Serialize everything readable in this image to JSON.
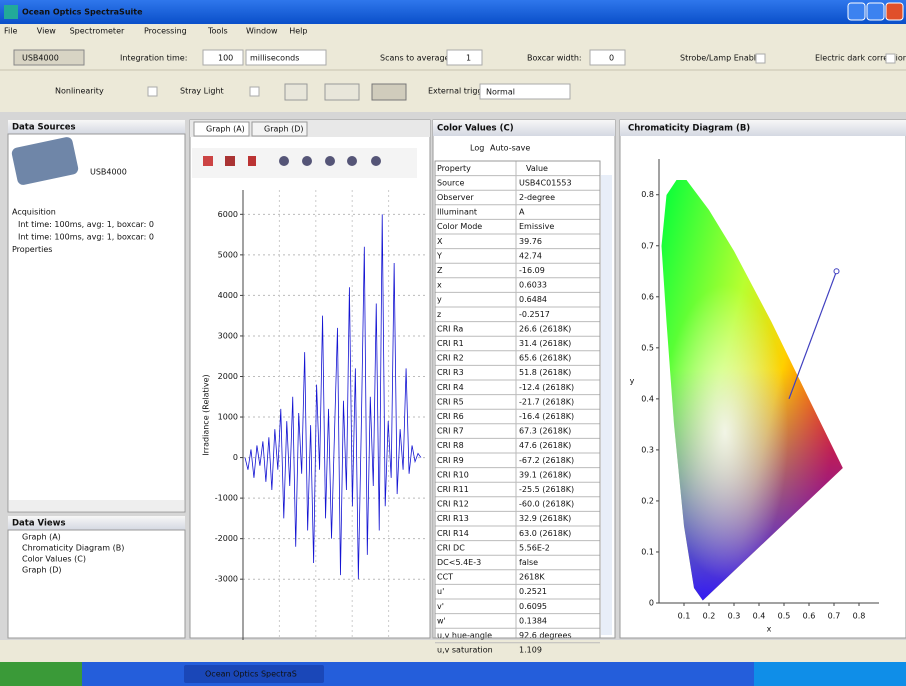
{
  "window": {
    "title": "Ocean Optics SpectraSuite"
  },
  "menu": [
    "File",
    "View",
    "Spectrometer",
    "Processing",
    "Tools",
    "Window",
    "Help"
  ],
  "toolbar": {
    "device": "USB4000",
    "integration_time": "Integration time:",
    "integration_value": "100",
    "integration_unit": "milliseconds",
    "scans": "Scans to average:",
    "scans_value": "1",
    "boxcar": "Boxcar width:",
    "boxcar_value": "0",
    "strobe": "Strobe/Lamp Enable",
    "dark": "Electric dark correction",
    "nonlinearity": "Nonlinearity",
    "stray_light": "Stray Light",
    "trigger": "External trigger",
    "trigger_mode": "Normal"
  },
  "data_sources": {
    "title": "Data Sources",
    "device": "USB4000",
    "tree": [
      "Acquisition",
      "Int time: 100ms, avg: 1, boxcar: 0",
      "Int time: 100ms, avg: 1, boxcar: 0",
      "Properties"
    ]
  },
  "data_views": {
    "title": "Data Views",
    "items": [
      "Graph (A)",
      "Chromaticity Diagram (B)",
      "Color Values (C)",
      "Graph (D)"
    ]
  },
  "graph_tabs": [
    "Graph (A)",
    "Graph (D)"
  ],
  "color_values": {
    "title": "Color Values (C)",
    "log": "Log",
    "autosave": "Auto-save",
    "columns": [
      "Property",
      "Value"
    ],
    "rows": [
      [
        "Source",
        "USB4C01553"
      ],
      [
        "Observer",
        "2-degree"
      ],
      [
        "Illuminant",
        "A"
      ],
      [
        "Color Mode",
        "Emissive"
      ],
      [
        "X",
        "39.76"
      ],
      [
        "Y",
        "42.74"
      ],
      [
        "Z",
        "-16.09"
      ],
      [
        "x",
        "0.6033"
      ],
      [
        "y",
        "0.6484"
      ],
      [
        "z",
        "-0.2517"
      ],
      [
        "CRI Ra",
        "26.6 (2618K)"
      ],
      [
        "CRI R1",
        "31.4 (2618K)"
      ],
      [
        "CRI R2",
        "65.6 (2618K)"
      ],
      [
        "CRI R3",
        "51.8 (2618K)"
      ],
      [
        "CRI R4",
        "-12.4 (2618K)"
      ],
      [
        "CRI R5",
        "-21.7 (2618K)"
      ],
      [
        "CRI R6",
        "-16.4 (2618K)"
      ],
      [
        "CRI R7",
        "67.3 (2618K)"
      ],
      [
        "CRI R8",
        "47.6 (2618K)"
      ],
      [
        "CRI R9",
        "-67.2 (2618K)"
      ],
      [
        "CRI R10",
        "39.1 (2618K)"
      ],
      [
        "CRI R11",
        "-25.5 (2618K)"
      ],
      [
        "CRI R12",
        "-60.0 (2618K)"
      ],
      [
        "CRI R13",
        "32.9 (2618K)"
      ],
      [
        "CRI R14",
        "63.0 (2618K)"
      ],
      [
        "CRI DC",
        "5.56E-2"
      ],
      [
        "DC<5.4E-3",
        "false"
      ],
      [
        "CCT",
        "2618K"
      ],
      [
        "u'",
        "0.2521"
      ],
      [
        "v'",
        "0.6095"
      ],
      [
        "w'",
        "0.1384"
      ],
      [
        "u,v hue-angle",
        "92.6 degrees"
      ],
      [
        "u,v saturation",
        "1.109"
      ]
    ]
  },
  "chromaticity_title": "Chromaticity Diagram (B)",
  "taskbar": {
    "task": "Ocean Optics SpectraS"
  },
  "chart_data": [
    {
      "type": "line",
      "y_label": "Irradiance (Relative)",
      "ylim": [
        -4500,
        6600
      ],
      "yticks": [
        -3000,
        -2000,
        -1000,
        0,
        1000,
        2000,
        3000,
        4000,
        5000,
        6000
      ],
      "grid": true,
      "series": [
        {
          "color": "#1414d2",
          "values": [
            0,
            -300,
            200,
            -500,
            300,
            -200,
            400,
            -600,
            500,
            -800,
            700,
            -300,
            1200,
            -1500,
            900,
            -700,
            1500,
            -2200,
            1100,
            -400,
            2600,
            -1800,
            800,
            -2600,
            1800,
            -300,
            3500,
            -1500,
            1200,
            -2000,
            600,
            3200,
            -2900,
            1400,
            -800,
            4200,
            -1200,
            2200,
            -3000,
            800,
            5200,
            -2400,
            1500,
            -700,
            3800,
            -1800,
            6000,
            -1200,
            900,
            -500,
            4800,
            -900,
            700,
            -300,
            2200,
            -400,
            300,
            -100,
            100,
            0
          ]
        }
      ]
    },
    {
      "type": "line",
      "x_label": "x",
      "y_label": "y",
      "xlim": [
        0,
        0.88
      ],
      "ylim": [
        0,
        0.87
      ],
      "xticks": [
        0.1,
        0.2,
        0.3,
        0.4,
        0.5,
        0.6,
        0.7,
        0.8
      ],
      "yticks": [
        0,
        0.1,
        0.2,
        0.3,
        0.4,
        0.5,
        0.6,
        0.7,
        0.8
      ],
      "series": [
        {
          "color": "#4040c0",
          "x": [
            0.52,
            0.71
          ],
          "values": [
            0.4,
            0.65
          ]
        }
      ]
    }
  ]
}
